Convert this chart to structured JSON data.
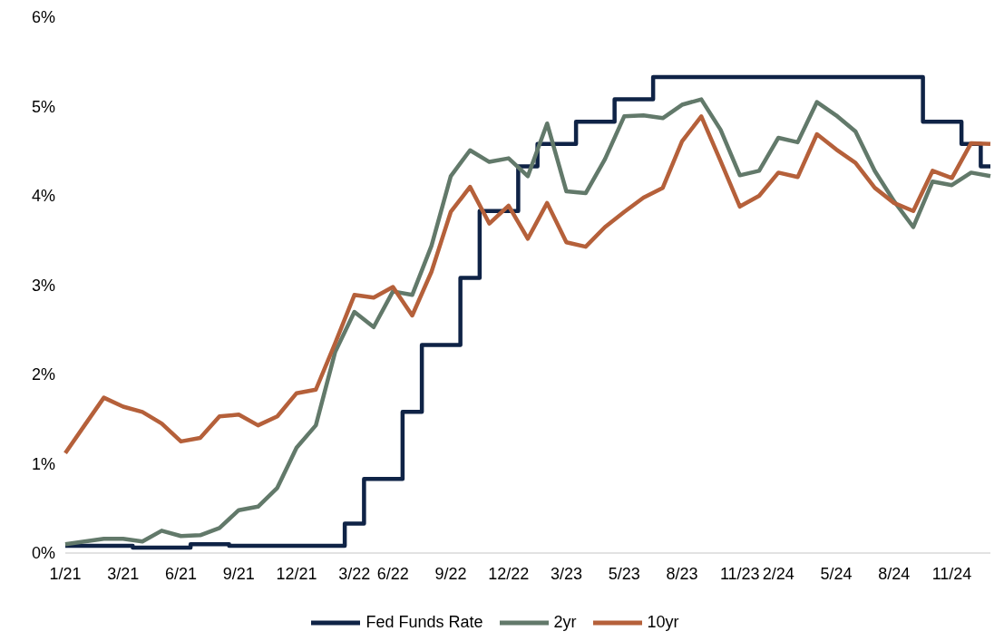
{
  "chart_data": {
    "type": "line",
    "categories": [
      "1/21",
      null,
      null,
      "3/21",
      null,
      null,
      "6/21",
      null,
      null,
      "9/21",
      null,
      null,
      "12/21",
      null,
      null,
      "3/22",
      null,
      "6/22",
      null,
      null,
      "9/22",
      null,
      null,
      "12/22",
      null,
      null,
      "3/23",
      null,
      null,
      "5/23",
      null,
      null,
      "8/23",
      null,
      null,
      "11/23",
      null,
      "2/24",
      null,
      null,
      "5/24",
      null,
      null,
      "8/24",
      null,
      null,
      "11/24",
      null,
      null
    ],
    "series": [
      {
        "name": "Fed Funds Rate",
        "type": "step",
        "color": "#0f2346",
        "values": [
          0.08,
          0.08,
          0.08,
          0.08,
          0.06,
          0.06,
          0.06,
          0.1,
          0.1,
          0.08,
          0.08,
          0.08,
          0.08,
          0.08,
          0.08,
          0.33,
          0.83,
          0.83,
          1.58,
          2.33,
          2.33,
          3.08,
          3.83,
          3.83,
          4.33,
          4.58,
          4.58,
          4.83,
          4.83,
          5.08,
          5.08,
          5.33,
          5.33,
          5.33,
          5.33,
          5.33,
          5.33,
          5.33,
          5.33,
          5.33,
          5.33,
          5.33,
          5.33,
          5.33,
          5.33,
          4.83,
          4.83,
          4.58,
          4.33
        ]
      },
      {
        "name": "2yr",
        "color": "#62796a",
        "values": [
          0.1,
          0.13,
          0.16,
          0.16,
          0.13,
          0.25,
          0.19,
          0.2,
          0.28,
          0.48,
          0.52,
          0.73,
          1.18,
          1.43,
          2.25,
          2.7,
          2.53,
          2.93,
          2.89,
          3.44,
          4.22,
          4.51,
          4.38,
          4.42,
          4.22,
          4.81,
          4.05,
          4.03,
          4.41,
          4.89,
          4.9,
          4.87,
          5.02,
          5.08,
          4.74,
          4.23,
          4.28,
          4.65,
          4.6,
          5.05,
          4.9,
          4.72,
          4.28,
          3.94,
          3.65,
          4.16,
          4.12,
          4.26,
          4.22
        ]
      },
      {
        "name": "10yr",
        "color": "#b5603a",
        "values": [
          1.12,
          1.43,
          1.74,
          1.64,
          1.58,
          1.45,
          1.25,
          1.29,
          1.53,
          1.55,
          1.43,
          1.53,
          1.79,
          1.83,
          2.35,
          2.89,
          2.86,
          2.98,
          2.66,
          3.15,
          3.82,
          4.1,
          3.69,
          3.89,
          3.52,
          3.92,
          3.48,
          3.43,
          3.65,
          3.82,
          3.98,
          4.09,
          4.61,
          4.89,
          4.39,
          3.88,
          4.0,
          4.26,
          4.21,
          4.69,
          4.52,
          4.37,
          4.09,
          3.92,
          3.83,
          4.28,
          4.2,
          4.59,
          4.58
        ]
      }
    ],
    "ylim": [
      0,
      6
    ],
    "yticks": [
      {
        "value": 0,
        "label": "0%"
      },
      {
        "value": 1,
        "label": "1%"
      },
      {
        "value": 2,
        "label": "2%"
      },
      {
        "value": 3,
        "label": "3%"
      },
      {
        "value": 4,
        "label": "4%"
      },
      {
        "value": 5,
        "label": "5%"
      },
      {
        "value": 6,
        "label": "6%"
      }
    ],
    "grid": false,
    "legend": "bottom",
    "line_style": "solid",
    "marker": "none"
  }
}
